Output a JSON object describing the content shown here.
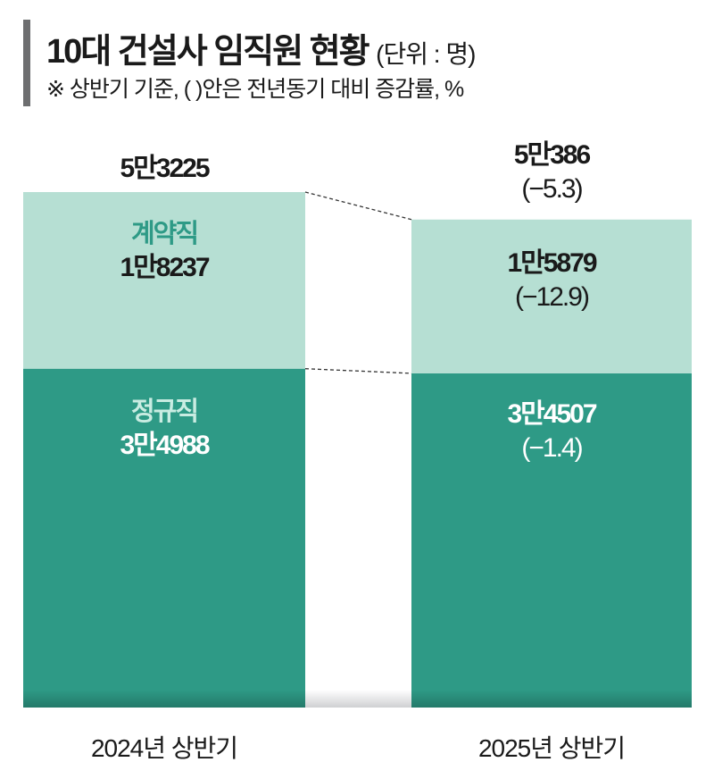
{
  "title": "10대 건설사 임직원 현황",
  "unit": "(단위 : 명)",
  "subtitle": "※ 상반기 기준, (   )안은 전년동기 대비 증감률, %",
  "colors": {
    "regular": "#2e9a86",
    "contract": "#b6dfd3",
    "contract_label": "#2e9a86",
    "title_bar": "#6d6e70"
  },
  "chart_data": {
    "type": "bar",
    "stacked": true,
    "categories": [
      "2024년 상반기",
      "2025년 상반기"
    ],
    "series": [
      {
        "name": "정규직",
        "values": [
          34988,
          34507
        ],
        "labels": [
          "3만4988",
          "3만4507"
        ],
        "changes": [
          "",
          "(−1.4)"
        ]
      },
      {
        "name": "계약직",
        "values": [
          18237,
          15879
        ],
        "labels": [
          "1만8237",
          "1만5879"
        ],
        "changes": [
          "",
          "(−12.9)"
        ]
      }
    ],
    "totals": [
      53225,
      50386
    ],
    "total_labels": [
      "5만3225",
      "5만386"
    ],
    "total_changes": [
      "",
      "(−5.3)"
    ]
  }
}
